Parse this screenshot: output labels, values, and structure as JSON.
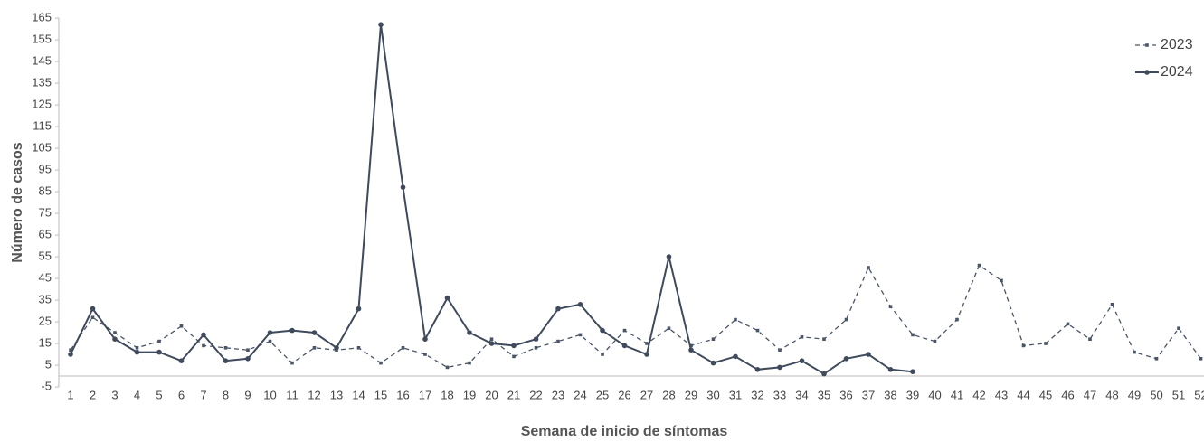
{
  "chart_data": {
    "type": "line",
    "x_label": "Semana de inicio de síntomas",
    "y_label": "Número de casos",
    "categories": [
      "1",
      "2",
      "3",
      "4",
      "5",
      "6",
      "7",
      "8",
      "9",
      "10",
      "11",
      "12",
      "13",
      "14",
      "15",
      "16",
      "17",
      "18",
      "19",
      "20",
      "21",
      "22",
      "23",
      "24",
      "25",
      "26",
      "27",
      "28",
      "29",
      "30",
      "31",
      "32",
      "33",
      "34",
      "35",
      "36",
      "37",
      "38",
      "39",
      "40",
      "41",
      "42",
      "43",
      "44",
      "45",
      "46",
      "47",
      "48",
      "49",
      "50",
      "51",
      "52"
    ],
    "series": [
      {
        "name": "2023",
        "color": "#4a5568",
        "line_style": "dashed",
        "values": [
          12,
          27,
          20,
          13,
          16,
          23,
          14,
          13,
          12,
          16,
          6,
          13,
          12,
          13,
          6,
          13,
          10,
          4,
          6,
          17,
          9,
          13,
          16,
          19,
          10,
          21,
          15,
          22,
          14,
          17,
          26,
          21,
          12,
          18,
          17,
          26,
          50,
          32,
          19,
          16,
          26,
          51,
          44,
          14,
          15,
          24,
          17,
          33,
          11,
          8,
          22,
          8
        ]
      },
      {
        "name": "2024",
        "color": "#3f4a5c",
        "line_style": "solid",
        "values": [
          10,
          31,
          17,
          11,
          11,
          7,
          19,
          7,
          8,
          20,
          21,
          20,
          13,
          31,
          162,
          87,
          17,
          36,
          20,
          15,
          14,
          17,
          31,
          33,
          21,
          14,
          10,
          55,
          12,
          6,
          9,
          3,
          4,
          7,
          1,
          8,
          10,
          3,
          2,
          null,
          null,
          null,
          null,
          null,
          null,
          null,
          null,
          null,
          null,
          null,
          null,
          null
        ]
      }
    ],
    "ylim": [
      -5,
      165
    ],
    "yticks": [
      -5,
      5,
      15,
      25,
      35,
      45,
      55,
      65,
      75,
      85,
      95,
      105,
      115,
      125,
      135,
      145,
      155,
      165
    ],
    "legend": "top-right",
    "grid": false
  }
}
